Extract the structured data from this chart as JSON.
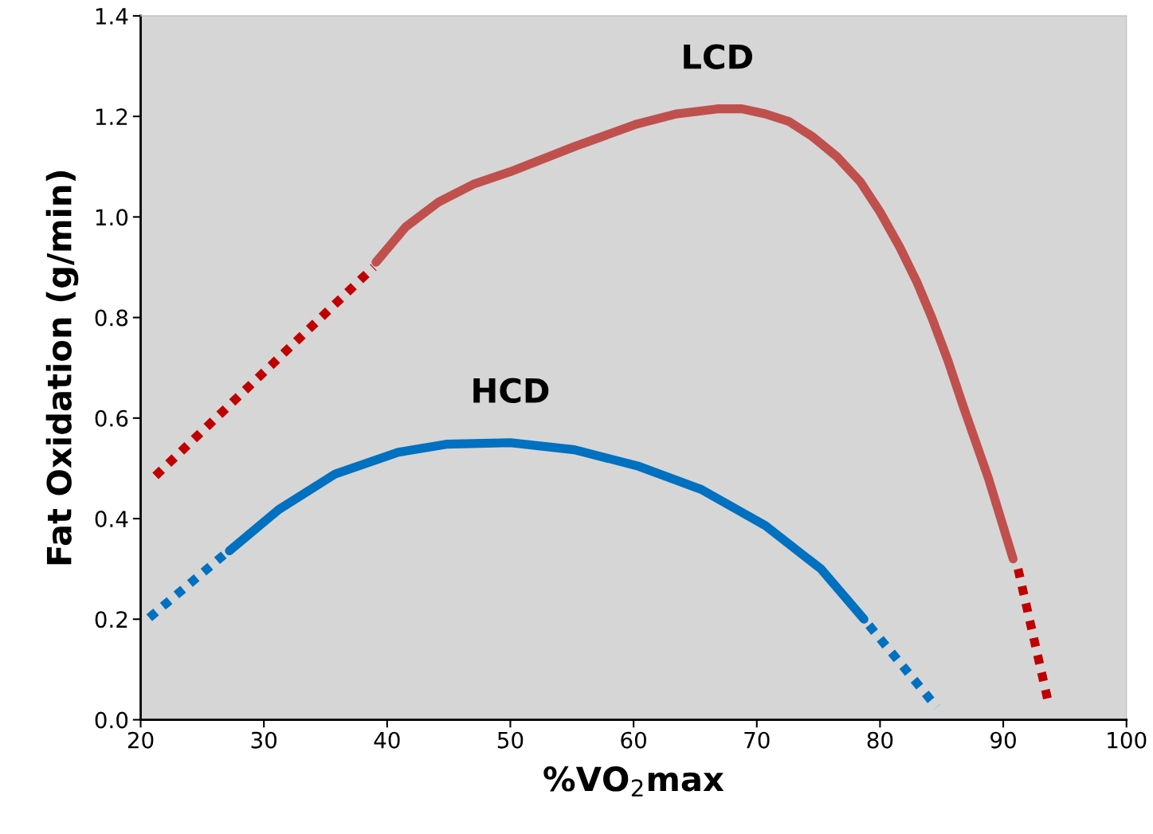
{
  "chart_data": {
    "type": "line",
    "xlabel": "%VO$_{2}$max",
    "ylabel": "Fat Oxidation (g/min)",
    "xlim": [
      20,
      100
    ],
    "xticks": [
      20,
      30,
      40,
      50,
      60,
      70,
      80,
      90,
      100
    ],
    "ylim": [
      0,
      1.4
    ],
    "yticks": [
      {
        "value": 0,
        "label": "0.0"
      },
      {
        "value": 0.2,
        "label": "0.2"
      },
      {
        "value": 0.4,
        "label": "0.4"
      },
      {
        "value": 0.6,
        "label": "0.6"
      },
      {
        "value": 0.8,
        "label": "0.8"
      },
      {
        "value": 1.0,
        "label": "1.0"
      },
      {
        "value": 1.2,
        "label": "1.2"
      },
      {
        "value": 1.4,
        "label": "1.4"
      }
    ],
    "grid": false,
    "marker": "none",
    "series": [
      {
        "name": "LCD",
        "color": "#c0504d",
        "line_style": "solid",
        "x": [
          39.1,
          41.5,
          44.2,
          47.0,
          50.0,
          55.2,
          60.3,
          63.5,
          66.8,
          68.8,
          70.7,
          72.6,
          74.5,
          76.5,
          78.4,
          80.0,
          81.6,
          83.0,
          84.2,
          85.5,
          86.8,
          88.8,
          90.8
        ],
        "values": [
          0.91,
          0.98,
          1.03,
          1.065,
          1.09,
          1.14,
          1.185,
          1.205,
          1.215,
          1.215,
          1.205,
          1.19,
          1.16,
          1.12,
          1.07,
          1.01,
          0.94,
          0.87,
          0.8,
          0.715,
          0.62,
          0.48,
          0.32
        ]
      },
      {
        "color": "#c00000",
        "line_style": "dotted",
        "x": [
          21.2,
          38.9
        ],
        "values": [
          0.485,
          0.9
        ]
      },
      {
        "color": "#c00000",
        "line_style": "dotted",
        "x": [
          91.2,
          93.7
        ],
        "values": [
          0.3,
          0.03
        ]
      },
      {
        "name": "HCD",
        "color": "#0070c0",
        "line_style": "solid",
        "x": [
          27.2,
          31.2,
          35.8,
          40.9,
          44.8,
          50.0,
          55.2,
          60.3,
          65.5,
          70.7,
          75.2,
          78.7
        ],
        "values": [
          0.336,
          0.418,
          0.489,
          0.532,
          0.548,
          0.551,
          0.537,
          0.505,
          0.458,
          0.386,
          0.3,
          0.2
        ]
      },
      {
        "color": "#0070c0",
        "line_style": "dotted",
        "x": [
          20.7,
          26.9
        ],
        "values": [
          0.203,
          0.331
        ]
      },
      {
        "color": "#0070c0",
        "line_style": "dotted",
        "x": [
          79.1,
          84.6
        ],
        "values": [
          0.188,
          0.025
        ]
      }
    ]
  }
}
